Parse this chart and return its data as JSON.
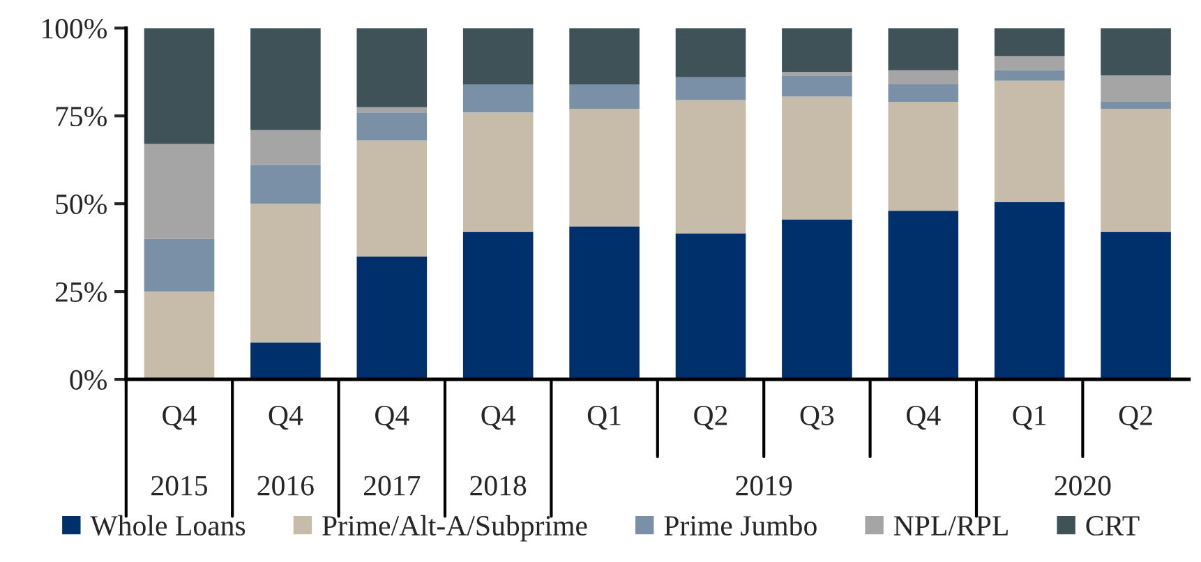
{
  "chart_data": {
    "type": "bar",
    "stacked": true,
    "categories": [
      "Q4",
      "Q4",
      "Q4",
      "Q4",
      "Q1",
      "Q2",
      "Q3",
      "Q4",
      "Q1",
      "Q2"
    ],
    "series": [
      {
        "name": "Whole Loans",
        "color": "#00306b",
        "values": [
          0,
          10.5,
          35,
          42,
          43.5,
          41.5,
          45.5,
          48,
          50.5,
          42
        ]
      },
      {
        "name": "Prime/Alt-A/Subprime",
        "color": "#c7bcaa",
        "values": [
          25,
          39.5,
          33,
          34,
          33.5,
          38,
          35,
          31,
          34.5,
          35
        ]
      },
      {
        "name": "Prime Jumbo",
        "color": "#7a90a6",
        "values": [
          15,
          11,
          8,
          8,
          7,
          6.5,
          6,
          5,
          3,
          2
        ]
      },
      {
        "name": "NPL/RPL",
        "color": "#a5a5a5",
        "values": [
          27,
          10,
          1.5,
          0,
          0,
          0,
          1,
          4,
          4,
          7.5
        ]
      },
      {
        "name": "CRT",
        "color": "#3e5257",
        "values": [
          33,
          29,
          22.5,
          16,
          16,
          14,
          12.5,
          12,
          8,
          13.5
        ]
      }
    ],
    "annotations": [
      "2015",
      "2016",
      "2017",
      "2018",
      "2019",
      "2020"
    ],
    "ylim": [
      0,
      100
    ],
    "yticks": [
      {
        "value": 0,
        "label": "0%"
      },
      {
        "value": 25,
        "label": "25%"
      },
      {
        "value": 50,
        "label": "50%"
      },
      {
        "value": 75,
        "label": "75%"
      },
      {
        "value": 100,
        "label": "100%"
      }
    ],
    "grid": false,
    "legend": "bottom"
  }
}
